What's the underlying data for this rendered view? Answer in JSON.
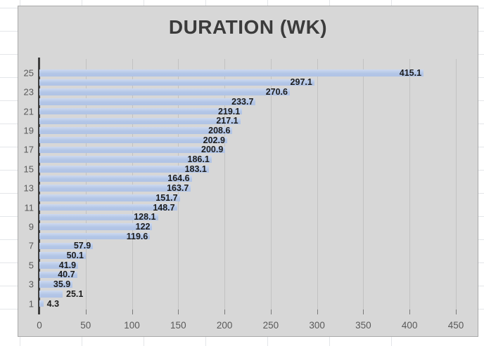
{
  "chart_data": {
    "type": "bar",
    "orientation": "horizontal",
    "title": "DURATION (WK)",
    "xlabel": "",
    "ylabel": "",
    "xlim": [
      0,
      450
    ],
    "x_ticks": [
      0,
      50,
      100,
      150,
      200,
      250,
      300,
      350,
      400,
      450
    ],
    "y_axis_visible_labels": [
      25,
      23,
      21,
      19,
      17,
      15,
      13,
      11,
      9,
      7,
      5,
      3,
      1
    ],
    "grid": true,
    "legend": false,
    "data_labels": true,
    "rows": [
      {
        "category": 25,
        "value": 415.1
      },
      {
        "category": 24,
        "value": 297.1
      },
      {
        "category": 23,
        "value": 270.6
      },
      {
        "category": 22,
        "value": 233.7
      },
      {
        "category": 21,
        "value": 219.1
      },
      {
        "category": 20,
        "value": 217.1
      },
      {
        "category": 19,
        "value": 208.6
      },
      {
        "category": 18,
        "value": 202.9
      },
      {
        "category": 17,
        "value": 200.9
      },
      {
        "category": 16,
        "value": 186.1
      },
      {
        "category": 15,
        "value": 183.1
      },
      {
        "category": 14,
        "value": 164.6
      },
      {
        "category": 13,
        "value": 163.7
      },
      {
        "category": 12,
        "value": 151.7
      },
      {
        "category": 11,
        "value": 148.7
      },
      {
        "category": 10,
        "value": 128.1
      },
      {
        "category": 9,
        "value": 122
      },
      {
        "category": 8,
        "value": 119.6
      },
      {
        "category": 7,
        "value": 57.9
      },
      {
        "category": 6,
        "value": 50.1
      },
      {
        "category": 5,
        "value": 41.9
      },
      {
        "category": 4,
        "value": 40.7
      },
      {
        "category": 3,
        "value": 35.9
      },
      {
        "category": 2,
        "value": 25.1
      },
      {
        "category": 1,
        "value": 4.3
      }
    ],
    "colors": {
      "bar": "#b3c6e7",
      "bar_highlight": "#cdd9f0",
      "plot_background": "#d7d7d7",
      "chart_border": "#a9a9a9",
      "title_text": "#3b3b3b",
      "axis_line": "#3f3f3f",
      "tick_label_text": "#595959",
      "data_label_text": "#1c1c1c",
      "gridline": "#c2c2c2",
      "sheet_gridline": "#e4e6e9"
    }
  }
}
